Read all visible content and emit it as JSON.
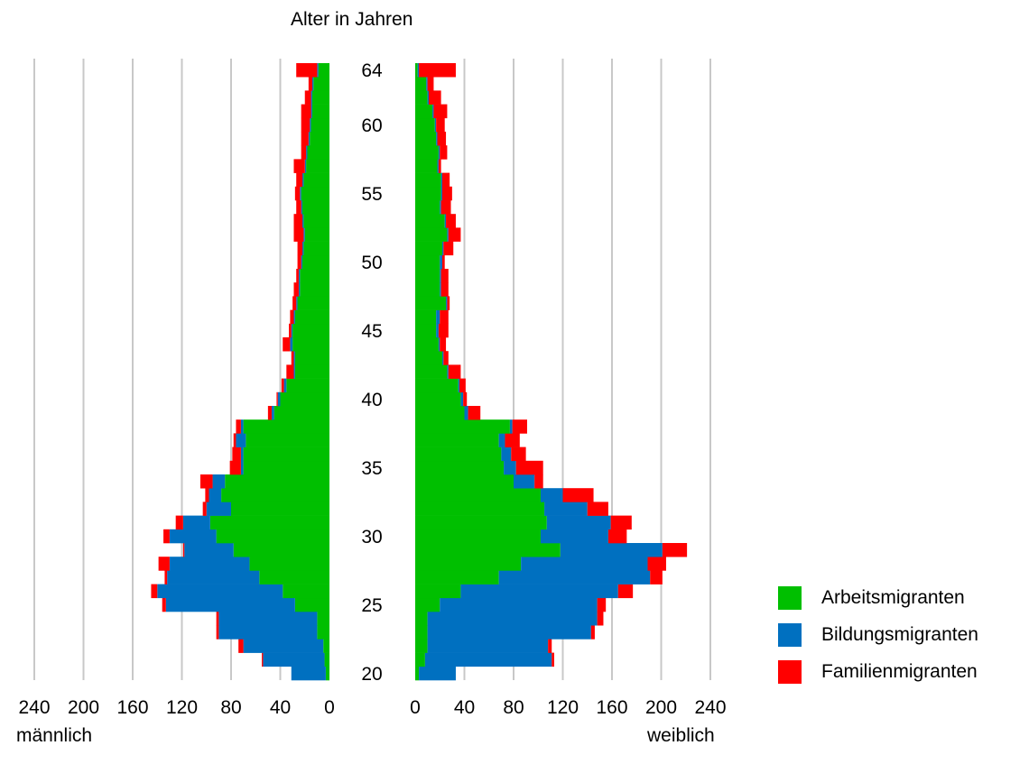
{
  "chart_data": {
    "type": "population-pyramid (horizontal stacked bar)",
    "title": "Alter in Jahren",
    "left_label": "männlich",
    "right_label": "weiblich",
    "ages": [
      20,
      21,
      22,
      23,
      24,
      25,
      26,
      27,
      28,
      29,
      30,
      31,
      32,
      33,
      34,
      35,
      36,
      37,
      38,
      39,
      40,
      41,
      42,
      43,
      44,
      45,
      46,
      47,
      48,
      49,
      50,
      51,
      52,
      53,
      54,
      55,
      56,
      57,
      58,
      59,
      60,
      61,
      62,
      63,
      64
    ],
    "age_ticks": [
      20,
      25,
      30,
      35,
      40,
      45,
      50,
      55,
      60,
      64
    ],
    "x_ticks_left": [
      "240",
      "200",
      "160",
      "120",
      "80",
      "40",
      "0"
    ],
    "x_ticks_right": [
      "0",
      "40",
      "80",
      "120",
      "160",
      "200",
      "240"
    ],
    "xlim": [
      0,
      240
    ],
    "grid": true,
    "legend_position": "bottom-right",
    "series": [
      {
        "name": "Arbeitsmigranten",
        "color": "#00bf00"
      },
      {
        "name": "Bildungsmigranten",
        "color": "#0070c0"
      },
      {
        "name": "Familienmigranten",
        "color": "#ff0000"
      }
    ],
    "male": {
      "Arbeitsmigranten": [
        3,
        4,
        5,
        10,
        10,
        28,
        38,
        57,
        65,
        78,
        92,
        97,
        80,
        88,
        85,
        70,
        70,
        68,
        70,
        45,
        40,
        35,
        28,
        28,
        30,
        30,
        28,
        26,
        24,
        24,
        22,
        21,
        20,
        21,
        22,
        23,
        21,
        19,
        18,
        16,
        15,
        14,
        14,
        13,
        9
      ],
      "Bildungsmigranten": [
        28,
        50,
        65,
        80,
        80,
        105,
        102,
        75,
        65,
        40,
        38,
        22,
        20,
        10,
        10,
        2,
        2,
        8,
        2,
        2,
        2,
        2,
        1,
        1,
        2,
        1,
        1,
        1,
        1,
        1,
        1,
        1,
        1,
        1,
        1,
        1,
        1,
        1,
        1,
        1,
        1,
        1,
        1,
        1,
        1
      ],
      "Familienmigranten": [
        0,
        1,
        4,
        2,
        2,
        3,
        5,
        2,
        9,
        1,
        5,
        6,
        3,
        3,
        10,
        9,
        7,
        2,
        4,
        3,
        1,
        2,
        6,
        2,
        6,
        2,
        3,
        3,
        4,
        2,
        3,
        4,
        8,
        7,
        4,
        4,
        5,
        9,
        4,
        6,
        7,
        8,
        5,
        3,
        17
      ]
    },
    "female": {
      "Arbeitsmigranten": [
        3,
        8,
        10,
        10,
        10,
        20,
        37,
        68,
        86,
        118,
        102,
        107,
        105,
        102,
        80,
        72,
        70,
        68,
        77,
        40,
        37,
        35,
        26,
        22,
        19,
        17,
        17,
        25,
        20,
        20,
        20,
        22,
        26,
        24,
        20,
        21,
        21,
        18,
        19,
        17,
        16,
        14,
        10,
        9,
        2
      ],
      "Bildungsmigranten": [
        30,
        103,
        98,
        133,
        138,
        128,
        128,
        123,
        103,
        83,
        55,
        52,
        35,
        18,
        17,
        10,
        8,
        5,
        2,
        3,
        2,
        1,
        1,
        1,
        1,
        2,
        3,
        1,
        1,
        1,
        2,
        1,
        1,
        1,
        1,
        1,
        1,
        1,
        1,
        1,
        1,
        1,
        1,
        1,
        1
      ],
      "Familienmigranten": [
        0,
        2,
        3,
        3,
        5,
        7,
        12,
        10,
        15,
        20,
        15,
        17,
        17,
        25,
        7,
        22,
        12,
        12,
        12,
        10,
        3,
        5,
        10,
        4,
        5,
        8,
        7,
        2,
        6,
        6,
        2,
        8,
        10,
        8,
        8,
        8,
        6,
        2,
        6,
        7,
        7,
        11,
        10,
        5,
        30
      ]
    }
  }
}
